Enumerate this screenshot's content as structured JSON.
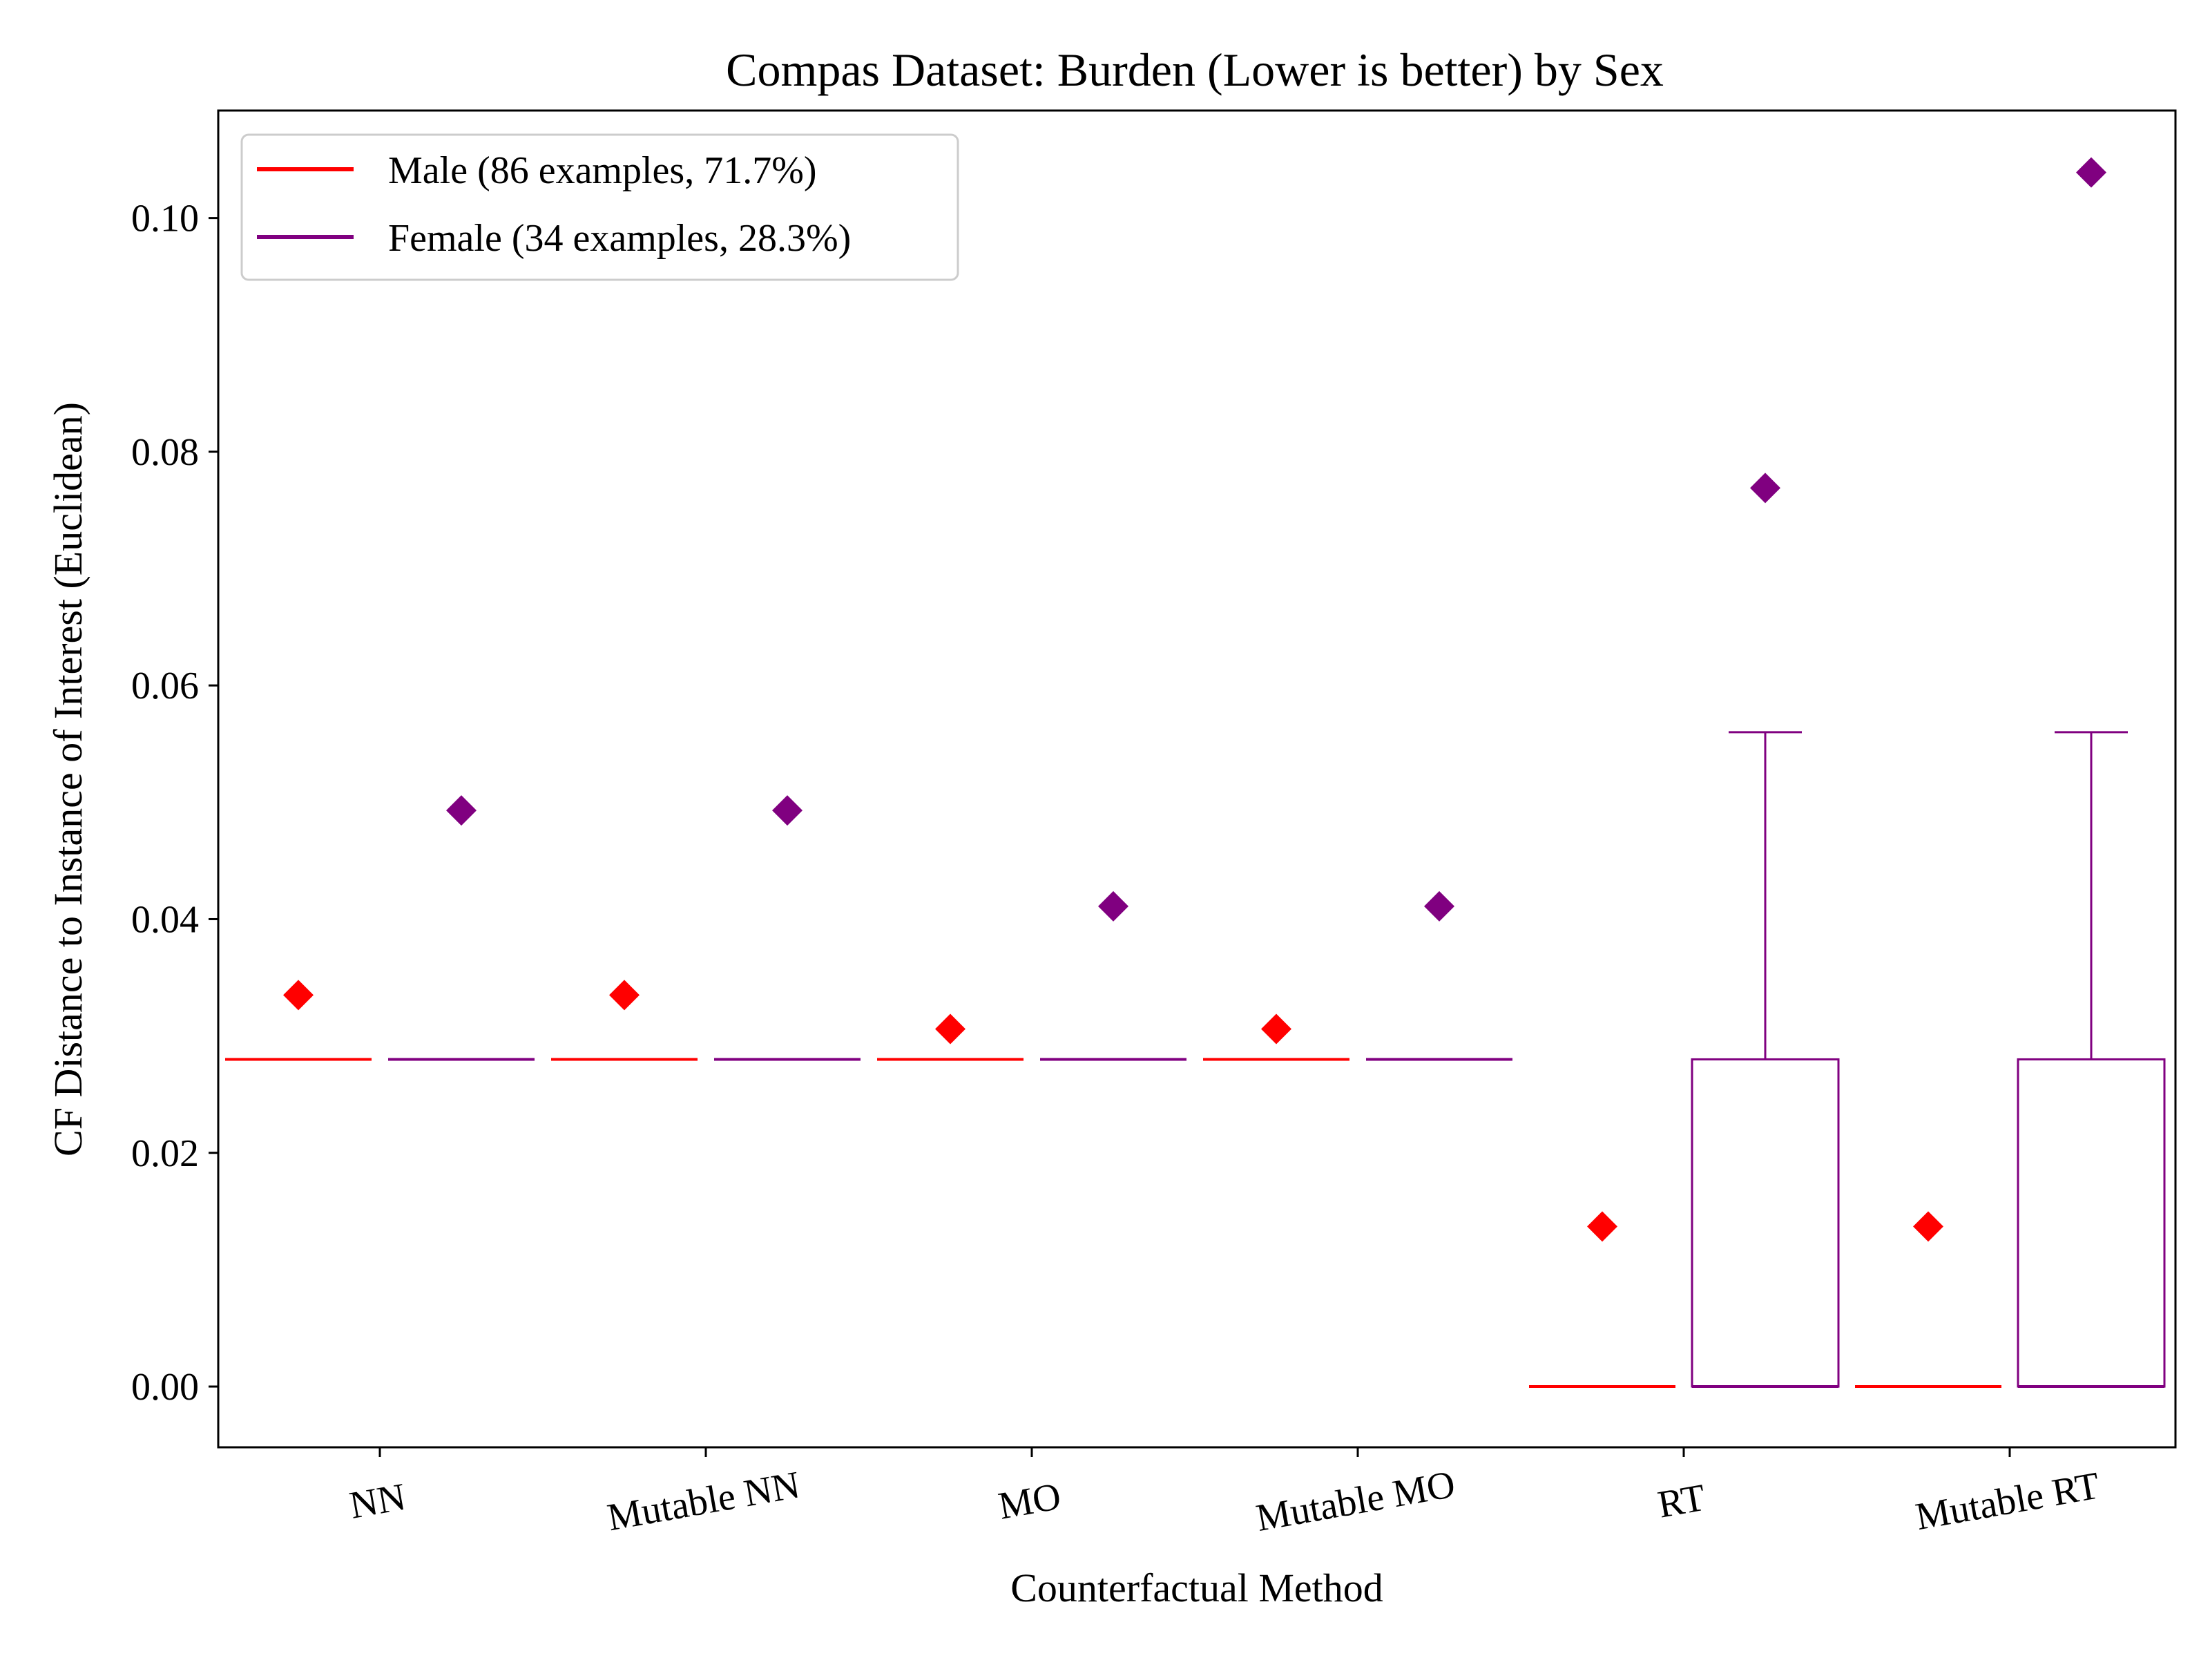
{
  "chart_data": {
    "type": "box",
    "title": "Compas Dataset: Burden (Lower is better) by Sex",
    "xlabel": "Counterfactual Method",
    "ylabel": "CF Distance to Instance of Interest (Euclidean)",
    "categories": [
      "NN",
      "Mutable NN",
      "MO",
      "Mutable MO",
      "RT",
      "Mutable RT"
    ],
    "yticks": [
      "0.00",
      "0.02",
      "0.04",
      "0.06",
      "0.08",
      "0.10"
    ],
    "ylim": [
      -0.0052,
      0.1092
    ],
    "grid": false,
    "legend_position": "upper-left",
    "series": [
      {
        "name": "Male (86 examples, 71.7%)",
        "color": "#ff0000",
        "boxes": [
          {
            "q1": 0.028,
            "median": 0.028,
            "q3": 0.028,
            "whisker_low": 0.028,
            "whisker_high": 0.028,
            "mean": 0.0335
          },
          {
            "q1": 0.028,
            "median": 0.028,
            "q3": 0.028,
            "whisker_low": 0.028,
            "whisker_high": 0.028,
            "mean": 0.0335
          },
          {
            "q1": 0.028,
            "median": 0.028,
            "q3": 0.028,
            "whisker_low": 0.028,
            "whisker_high": 0.028,
            "mean": 0.0306
          },
          {
            "q1": 0.028,
            "median": 0.028,
            "q3": 0.028,
            "whisker_low": 0.028,
            "whisker_high": 0.028,
            "mean": 0.0306
          },
          {
            "q1": 0.0,
            "median": 0.0,
            "q3": 0.0,
            "whisker_low": 0.0,
            "whisker_high": 0.0,
            "mean": 0.0137
          },
          {
            "q1": 0.0,
            "median": 0.0,
            "q3": 0.0,
            "whisker_low": 0.0,
            "whisker_high": 0.0,
            "mean": 0.0137
          }
        ]
      },
      {
        "name": "Female (34 examples, 28.3%)",
        "color": "#800080",
        "boxes": [
          {
            "q1": 0.028,
            "median": 0.028,
            "q3": 0.028,
            "whisker_low": 0.028,
            "whisker_high": 0.028,
            "mean": 0.0493
          },
          {
            "q1": 0.028,
            "median": 0.028,
            "q3": 0.028,
            "whisker_low": 0.028,
            "whisker_high": 0.028,
            "mean": 0.0493
          },
          {
            "q1": 0.028,
            "median": 0.028,
            "q3": 0.028,
            "whisker_low": 0.028,
            "whisker_high": 0.028,
            "mean": 0.0411
          },
          {
            "q1": 0.028,
            "median": 0.028,
            "q3": 0.028,
            "whisker_low": 0.028,
            "whisker_high": 0.028,
            "mean": 0.0411
          },
          {
            "q1": 0.0,
            "median": 0.0,
            "q3": 0.028,
            "whisker_low": 0.0,
            "whisker_high": 0.056,
            "mean": 0.0769
          },
          {
            "q1": 0.0,
            "median": 0.0,
            "q3": 0.028,
            "whisker_low": 0.0,
            "whisker_high": 0.056,
            "mean": 0.1039
          }
        ]
      }
    ]
  }
}
